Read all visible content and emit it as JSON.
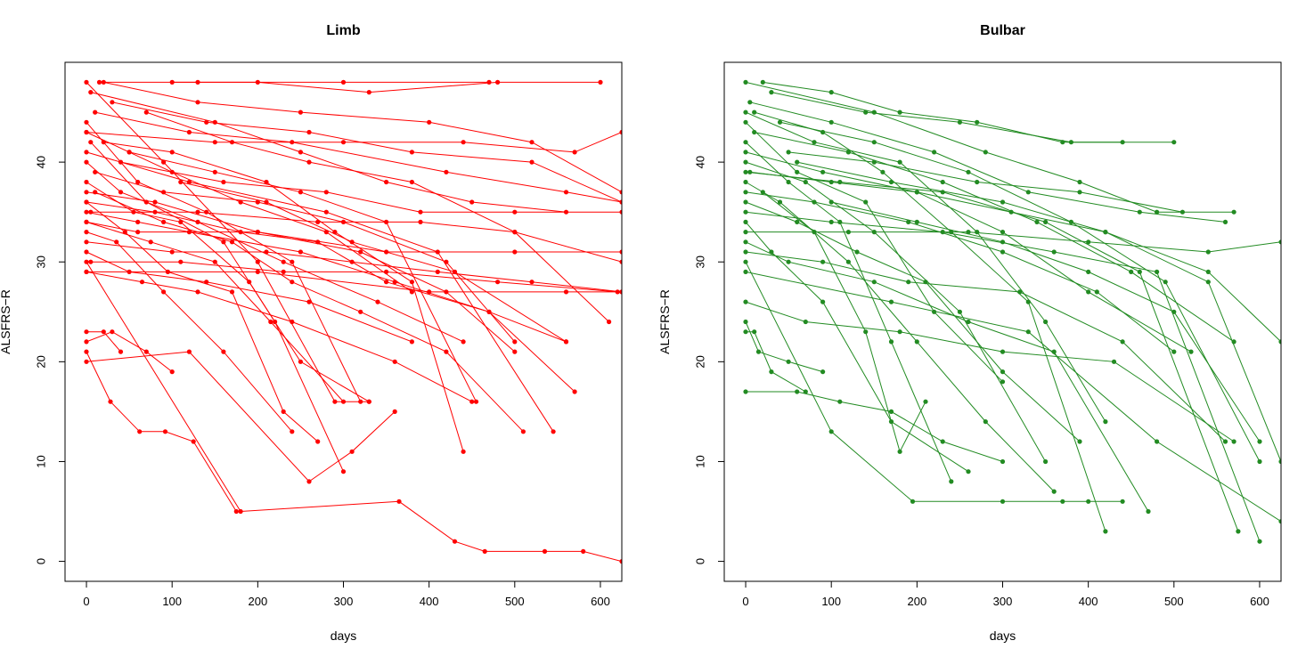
{
  "chart_data": [
    {
      "type": "line",
      "title": "Limb",
      "xlabel": "days",
      "ylabel": "ALSFRS−R",
      "xlim": [
        -25,
        625
      ],
      "ylim": [
        -2,
        50
      ],
      "xticks": [
        0,
        100,
        200,
        300,
        400,
        500,
        600
      ],
      "yticks": [
        0,
        10,
        20,
        30,
        40
      ],
      "color": "#ff0000",
      "grid": false,
      "legend": "none",
      "series": [
        {
          "x": [
            0,
            180,
            365,
            430,
            465,
            535,
            580,
            625
          ],
          "y": [
            30,
            5,
            6,
            2,
            1,
            1,
            1,
            0
          ]
        },
        {
          "x": [
            0,
            28,
            62,
            92,
            125,
            175
          ],
          "y": [
            21,
            16,
            13,
            13,
            12,
            5
          ]
        },
        {
          "x": [
            0,
            120,
            260,
            310,
            360
          ],
          "y": [
            20,
            21,
            8,
            11,
            15
          ]
        },
        {
          "x": [
            0,
            90,
            200,
            290,
            330
          ],
          "y": [
            48,
            40,
            30,
            16,
            16
          ]
        },
        {
          "x": [
            5,
            150,
            250,
            350,
            450,
            560
          ],
          "y": [
            47,
            44,
            41,
            38,
            36,
            35
          ]
        },
        {
          "x": [
            10,
            120,
            240,
            420,
            560,
            625
          ],
          "y": [
            45,
            43,
            42,
            39,
            37,
            36
          ]
        },
        {
          "x": [
            0,
            60,
            140,
            240,
            320
          ],
          "y": [
            44,
            38,
            35,
            30,
            16
          ]
        },
        {
          "x": [
            0,
            50,
            100,
            180,
            280,
            380
          ],
          "y": [
            43,
            41,
            39,
            36,
            33,
            27
          ]
        },
        {
          "x": [
            5,
            70,
            160,
            220,
            300
          ],
          "y": [
            42,
            36,
            32,
            24,
            9
          ]
        },
        {
          "x": [
            0,
            40,
            130,
            230,
            340,
            440
          ],
          "y": [
            40,
            37,
            34,
            30,
            26,
            22
          ]
        },
        {
          "x": [
            0,
            55,
            110,
            190,
            250,
            330
          ],
          "y": [
            38,
            35,
            34,
            28,
            20,
            16
          ]
        },
        {
          "x": [
            0,
            80,
            200,
            320,
            420,
            500
          ],
          "y": [
            37,
            36,
            33,
            31,
            27,
            21
          ]
        },
        {
          "x": [
            0,
            45,
            95,
            170,
            230,
            270
          ],
          "y": [
            36,
            33,
            29,
            27,
            15,
            12
          ]
        },
        {
          "x": [
            0,
            60,
            120,
            250,
            360,
            470,
            560
          ],
          "y": [
            35,
            34,
            33,
            31,
            28,
            25,
            22
          ]
        },
        {
          "x": [
            0,
            75,
            150,
            215,
            300
          ],
          "y": [
            34,
            32,
            30,
            24,
            16
          ]
        },
        {
          "x": [
            0,
            35,
            90,
            160,
            240
          ],
          "y": [
            33,
            32,
            27,
            21,
            13
          ]
        },
        {
          "x": [
            0,
            100,
            210,
            310,
            410,
            520,
            625
          ],
          "y": [
            32,
            31,
            31,
            30,
            29,
            28,
            27
          ]
        },
        {
          "x": [
            0,
            50,
            140,
            260,
            380
          ],
          "y": [
            31,
            29,
            28,
            26,
            22
          ]
        },
        {
          "x": [
            5,
            110,
            230,
            350,
            480,
            620
          ],
          "y": [
            30,
            30,
            29,
            29,
            28,
            27
          ]
        },
        {
          "x": [
            0,
            65,
            130,
            240,
            360,
            450
          ],
          "y": [
            29,
            28,
            27,
            24,
            20,
            16
          ]
        },
        {
          "x": [
            0,
            20,
            40
          ],
          "y": [
            23,
            23,
            21
          ]
        },
        {
          "x": [
            0,
            30,
            70,
            100
          ],
          "y": [
            22,
            23,
            21,
            19
          ]
        },
        {
          "x": [
            20,
            130,
            250,
            400,
            520,
            625
          ],
          "y": [
            48,
            46,
            45,
            44,
            42,
            37
          ]
        },
        {
          "x": [
            30,
            140,
            260,
            380,
            520,
            625
          ],
          "y": [
            46,
            44,
            43,
            41,
            40,
            36
          ]
        },
        {
          "x": [
            100,
            200,
            330,
            480,
            600
          ],
          "y": [
            48,
            48,
            47,
            48,
            48
          ]
        },
        {
          "x": [
            15,
            130,
            300,
            470
          ],
          "y": [
            48,
            48,
            48,
            48
          ]
        },
        {
          "x": [
            0,
            120,
            280,
            410,
            545
          ],
          "y": [
            41,
            38,
            35,
            31,
            13
          ]
        },
        {
          "x": [
            10,
            90,
            200,
            300,
            420,
            500
          ],
          "y": [
            39,
            37,
            36,
            34,
            30,
            22
          ]
        },
        {
          "x": [
            0,
            150,
            300,
            440,
            570,
            625
          ],
          "y": [
            43,
            42,
            42,
            42,
            41,
            43
          ]
        },
        {
          "x": [
            20,
            100,
            210,
            290,
            380,
            440
          ],
          "y": [
            42,
            41,
            38,
            33,
            28,
            11
          ]
        },
        {
          "x": [
            0,
            80,
            180,
            270,
            350,
            470,
            570
          ],
          "y": [
            36,
            35,
            33,
            32,
            28,
            25,
            17
          ]
        },
        {
          "x": [
            5,
            130,
            270,
            390,
            500,
            625
          ],
          "y": [
            35,
            35,
            34,
            34,
            33,
            30
          ]
        },
        {
          "x": [
            0,
            60,
            200,
            350,
            500,
            625
          ],
          "y": [
            34,
            33,
            33,
            31,
            31,
            31
          ]
        },
        {
          "x": [
            10,
            90,
            170,
            240,
            320,
            420,
            510
          ],
          "y": [
            37,
            34,
            32,
            28,
            25,
            21,
            13
          ]
        },
        {
          "x": [
            0,
            200,
            400,
            560,
            625
          ],
          "y": [
            29,
            29,
            27,
            27,
            27
          ]
        },
        {
          "x": [
            50,
            150,
            250,
            350,
            455
          ],
          "y": [
            41,
            39,
            37,
            34,
            16
          ]
        },
        {
          "x": [
            70,
            170,
            260,
            380,
            500,
            610
          ],
          "y": [
            45,
            42,
            40,
            38,
            33,
            24
          ]
        },
        {
          "x": [
            110,
            210,
            310,
            430,
            560
          ],
          "y": [
            38,
            36,
            32,
            29,
            22
          ]
        },
        {
          "x": [
            40,
            160,
            280,
            390,
            500,
            625
          ],
          "y": [
            40,
            38,
            37,
            35,
            35,
            35
          ]
        }
      ]
    },
    {
      "type": "line",
      "title": "Bulbar",
      "xlabel": "days",
      "ylabel": "ALSFRS−R",
      "xlim": [
        -25,
        625
      ],
      "ylim": [
        -2,
        50
      ],
      "xticks": [
        0,
        100,
        200,
        300,
        400,
        500,
        600
      ],
      "yticks": [
        0,
        10,
        20,
        30,
        40
      ],
      "color": "#228b22",
      "grid": false,
      "legend": "none",
      "series": [
        {
          "x": [
            0,
            100,
            195,
            300,
            370,
            400,
            440
          ],
          "y": [
            30,
            13,
            6,
            6,
            6,
            6,
            6
          ]
        },
        {
          "x": [
            0,
            60,
            110,
            170,
            230,
            300
          ],
          "y": [
            17,
            17,
            16,
            15,
            12,
            10
          ]
        },
        {
          "x": [
            0,
            150,
            280,
            390,
            480,
            570
          ],
          "y": [
            48,
            45,
            41,
            38,
            35,
            35
          ]
        },
        {
          "x": [
            5,
            100,
            220,
            330,
            460,
            560
          ],
          "y": [
            46,
            44,
            41,
            37,
            35,
            34
          ]
        },
        {
          "x": [
            0,
            80,
            180,
            270,
            350,
            420
          ],
          "y": [
            45,
            42,
            40,
            33,
            24,
            14
          ]
        },
        {
          "x": [
            0,
            60,
            140,
            220,
            300
          ],
          "y": [
            44,
            39,
            36,
            25,
            18
          ]
        },
        {
          "x": [
            10,
            120,
            230,
            340,
            450,
            570
          ],
          "y": [
            43,
            41,
            38,
            34,
            29,
            22
          ]
        },
        {
          "x": [
            0,
            50,
            110,
            170,
            240
          ],
          "y": [
            42,
            38,
            34,
            22,
            8
          ]
        },
        {
          "x": [
            0,
            90,
            200,
            300,
            400,
            520
          ],
          "y": [
            41,
            39,
            37,
            33,
            27,
            21
          ]
        },
        {
          "x": [
            0,
            70,
            150,
            250,
            350
          ],
          "y": [
            40,
            38,
            33,
            25,
            10
          ]
        },
        {
          "x": [
            5,
            100,
            200,
            310,
            420,
            540,
            625
          ],
          "y": [
            39,
            38,
            37,
            35,
            33,
            29,
            22
          ]
        },
        {
          "x": [
            0,
            40,
            120,
            200,
            280,
            360
          ],
          "y": [
            38,
            36,
            30,
            22,
            14,
            7
          ]
        },
        {
          "x": [
            0,
            80,
            190,
            300,
            410,
            500
          ],
          "y": [
            37,
            36,
            34,
            31,
            27,
            21
          ]
        },
        {
          "x": [
            0,
            60,
            130,
            210,
            300,
            390
          ],
          "y": [
            36,
            34,
            31,
            28,
            19,
            12
          ]
        },
        {
          "x": [
            0,
            100,
            230,
            360,
            480,
            600
          ],
          "y": [
            35,
            34,
            33,
            31,
            29,
            2
          ]
        },
        {
          "x": [
            0,
            30,
            90,
            170,
            260
          ],
          "y": [
            34,
            31,
            26,
            14,
            9
          ]
        },
        {
          "x": [
            0,
            120,
            260,
            400,
            540,
            625
          ],
          "y": [
            33,
            33,
            33,
            32,
            31,
            32
          ]
        },
        {
          "x": [
            0,
            50,
            150,
            260,
            360,
            470
          ],
          "y": [
            32,
            30,
            28,
            24,
            21,
            5
          ]
        },
        {
          "x": [
            0,
            90,
            190,
            320,
            440,
            560
          ],
          "y": [
            31,
            30,
            28,
            27,
            22,
            12
          ]
        },
        {
          "x": [
            0,
            10,
            30,
            70
          ],
          "y": [
            23,
            23,
            19,
            17
          ]
        },
        {
          "x": [
            0,
            15,
            50,
            90
          ],
          "y": [
            24,
            21,
            20,
            19
          ]
        },
        {
          "x": [
            20,
            100,
            180,
            270,
            370,
            440
          ],
          "y": [
            48,
            47,
            45,
            44,
            42,
            42
          ]
        },
        {
          "x": [
            30,
            140,
            250,
            380,
            500
          ],
          "y": [
            47,
            45,
            44,
            42,
            42
          ]
        },
        {
          "x": [
            0,
            170,
            330,
            480,
            625
          ],
          "y": [
            29,
            26,
            23,
            12,
            4
          ]
        },
        {
          "x": [
            40,
            150,
            260,
            380,
            490,
            600
          ],
          "y": [
            44,
            42,
            39,
            34,
            28,
            10
          ]
        },
        {
          "x": [
            10,
            90,
            160,
            240,
            330,
            420
          ],
          "y": [
            45,
            43,
            39,
            33,
            26,
            3
          ]
        },
        {
          "x": [
            0,
            70,
            180,
            300,
            430,
            570
          ],
          "y": [
            26,
            24,
            23,
            21,
            20,
            12
          ]
        },
        {
          "x": [
            60,
            170,
            300,
            420,
            540,
            625
          ],
          "y": [
            40,
            38,
            36,
            33,
            28,
            10
          ]
        },
        {
          "x": [
            0,
            110,
            230,
            350,
            460,
            575
          ],
          "y": [
            39,
            38,
            37,
            34,
            29,
            3
          ]
        },
        {
          "x": [
            20,
            80,
            140,
            180,
            210
          ],
          "y": [
            37,
            33,
            23,
            11,
            16
          ]
        },
        {
          "x": [
            100,
            200,
            300,
            400,
            500,
            600
          ],
          "y": [
            36,
            34,
            32,
            29,
            25,
            12
          ]
        },
        {
          "x": [
            50,
            150,
            270,
            390,
            510
          ],
          "y": [
            41,
            40,
            38,
            37,
            35
          ]
        }
      ]
    }
  ]
}
